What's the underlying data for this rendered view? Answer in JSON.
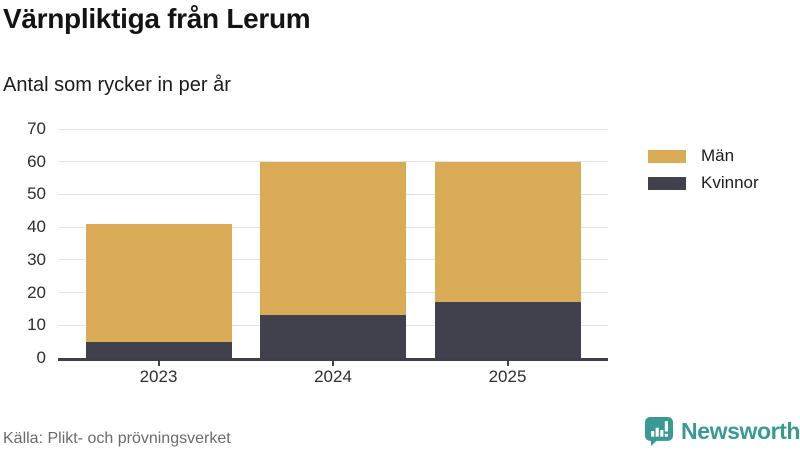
{
  "title": "Värnpliktiga från Lerum",
  "subtitle": "Antal som rycker in per år",
  "source": "Källa: Plikt- och prövningsverket",
  "branding": {
    "name": "Newsworthy",
    "icon": "bar-chart-speech-bubble-icon"
  },
  "colors": {
    "men_bar": "#d9ab57",
    "women_bar": "#41414e",
    "axis": "#3f3f4a",
    "gridline": "#e2e2e2",
    "text": "#1a1a1a",
    "muted_text": "#6b6b6b",
    "brand_teal": "#3a9a92"
  },
  "chart_data": {
    "type": "bar",
    "stacked": true,
    "categories": [
      "2023",
      "2024",
      "2025"
    ],
    "series": [
      {
        "name": "Män",
        "color": "#d9ab57",
        "values": [
          36,
          47,
          43
        ]
      },
      {
        "name": "Kvinnor",
        "color": "#41414e",
        "values": [
          5,
          13,
          17
        ]
      }
    ],
    "totals": [
      41,
      60,
      60
    ],
    "title": "Värnpliktiga från Lerum",
    "subtitle": "Antal som rycker in per år",
    "xlabel": "",
    "ylabel": "",
    "ylim": [
      0,
      70
    ],
    "yticks": [
      0,
      10,
      20,
      30,
      40,
      50,
      60,
      70
    ],
    "grid": true,
    "legend_position": "right"
  }
}
